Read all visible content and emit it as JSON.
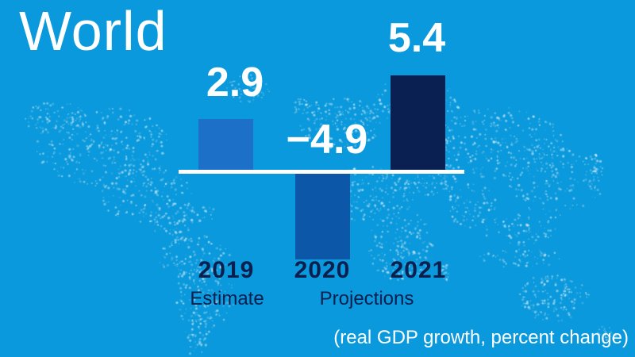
{
  "title": "World",
  "note": "(real GDP growth, percent change)",
  "colors": {
    "background": "#0999DC",
    "baseline": "#FFFFFF",
    "value_label": "#FFFFFF",
    "year_label": "#0A1F4E",
    "map_dots": "#FFFFFF"
  },
  "chart_data": {
    "type": "bar",
    "title": "World",
    "subtitle": "(real GDP growth, percent change)",
    "categories": [
      "2019",
      "2020",
      "2021"
    ],
    "values": [
      2.9,
      -4.9,
      5.4
    ],
    "value_labels": [
      "2.9",
      "−4.9",
      "5.4"
    ],
    "bar_colors": [
      "#1C70C8",
      "#0D57A8",
      "#0A1F52"
    ],
    "category_annotations": [
      "Estimate",
      "",
      "Projections"
    ],
    "baseline_value": 0,
    "unit": "percent",
    "grid": false,
    "legend": "none"
  }
}
